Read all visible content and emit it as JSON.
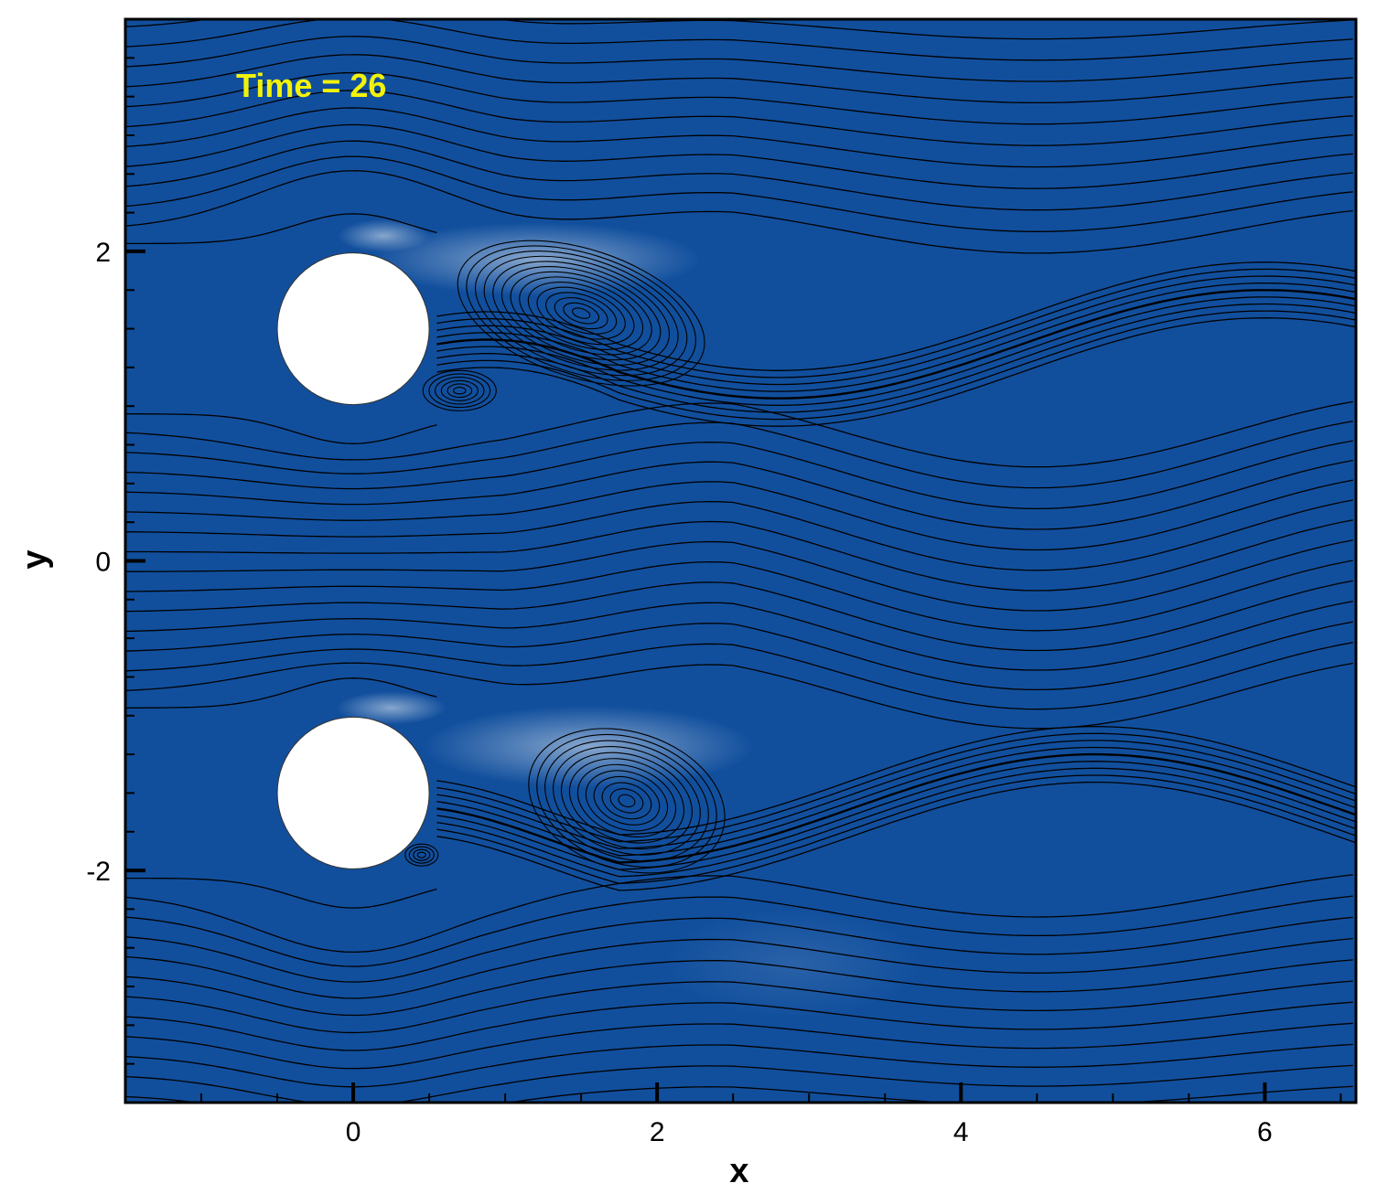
{
  "chart_data": {
    "type": "contour",
    "annotation": "Time = 26",
    "xlabel": "x",
    "ylabel": "y",
    "xlim": [
      -1.5,
      6.6
    ],
    "ylim": [
      -3.5,
      3.5
    ],
    "x_ticks": [
      0,
      2,
      4,
      6
    ],
    "x_tick_labels": [
      "0",
      "2",
      "4",
      "6"
    ],
    "y_ticks": [
      -2,
      0,
      2
    ],
    "y_tick_labels": [
      "-2",
      "0",
      "2"
    ],
    "x_minor_step": 0.5,
    "y_minor_step": 0.25,
    "cylinders": [
      {
        "center_x": 0,
        "center_y": 1.5,
        "diameter": 1
      },
      {
        "center_x": 0,
        "center_y": -1.5,
        "diameter": 1
      }
    ],
    "vortex_centers": [
      {
        "x": 1.5,
        "y": 1.6
      },
      {
        "x": 0.7,
        "y": 1.1
      },
      {
        "x": 1.8,
        "y": -1.55
      },
      {
        "x": 0.45,
        "y": -1.9
      }
    ],
    "grid": false
  },
  "colors": {
    "background_field": "#114f9d",
    "annotation_text": "#f2f20a",
    "cylinder": "#ffffff",
    "streamline": "#000000"
  }
}
